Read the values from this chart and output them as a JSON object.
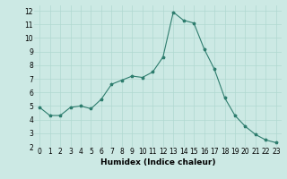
{
  "x": [
    0,
    1,
    2,
    3,
    4,
    5,
    6,
    7,
    8,
    9,
    10,
    11,
    12,
    13,
    14,
    15,
    16,
    17,
    18,
    19,
    20,
    21,
    22,
    23
  ],
  "y": [
    4.9,
    4.3,
    4.3,
    4.9,
    5.0,
    4.8,
    5.5,
    6.6,
    6.9,
    7.2,
    7.1,
    7.5,
    8.6,
    11.9,
    11.3,
    11.1,
    9.2,
    7.7,
    5.6,
    4.3,
    3.5,
    2.9,
    2.5,
    2.3
  ],
  "title": "",
  "xlabel": "Humidex (Indice chaleur)",
  "ylabel": "",
  "xlim": [
    -0.5,
    23.5
  ],
  "ylim": [
    2,
    12.4
  ],
  "yticks": [
    2,
    3,
    4,
    5,
    6,
    7,
    8,
    9,
    10,
    11,
    12
  ],
  "xticks": [
    0,
    1,
    2,
    3,
    4,
    5,
    6,
    7,
    8,
    9,
    10,
    11,
    12,
    13,
    14,
    15,
    16,
    17,
    18,
    19,
    20,
    21,
    22,
    23
  ],
  "line_color": "#2e7d6e",
  "marker": "*",
  "bg_color": "#cce9e4",
  "grid_color": "#b0d8d0",
  "font_size": 5.5,
  "xlabel_fontsize": 6.5
}
